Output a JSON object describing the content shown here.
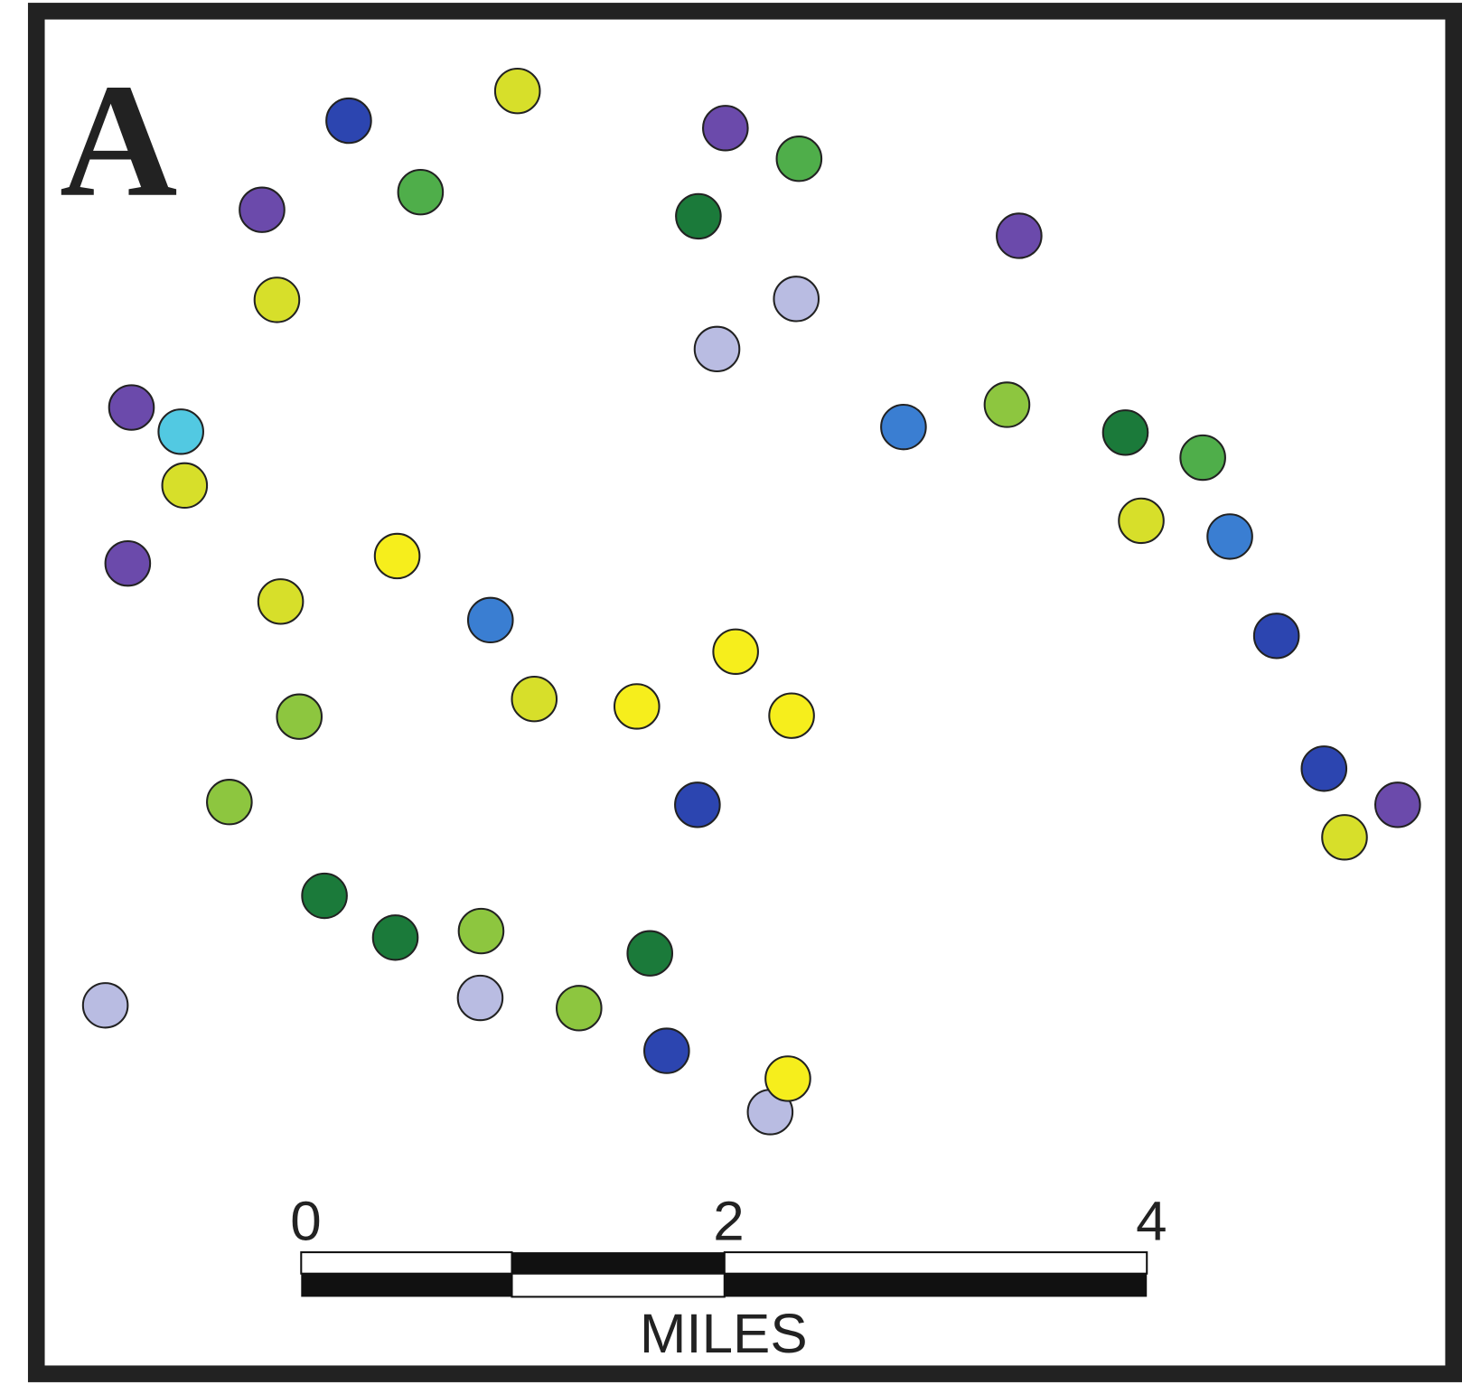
{
  "panel_label": "A",
  "scale_bar": {
    "ticks": [
      0,
      2,
      4
    ],
    "unit": "MILES"
  }
}
